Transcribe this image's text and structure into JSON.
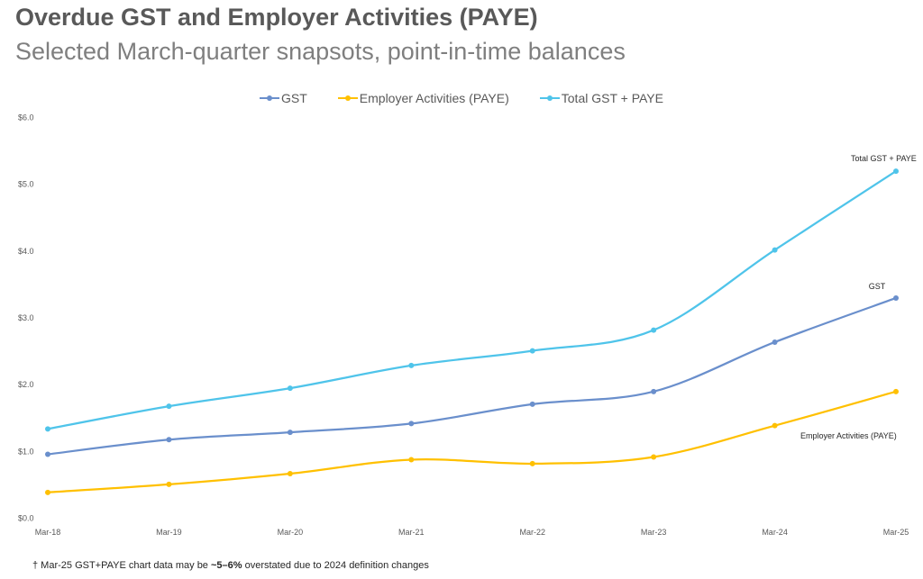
{
  "header": {
    "title": "Overdue GST and Employer Activities (PAYE)",
    "subtitle": "Selected March-quarter snapsots, point-in-time balances"
  },
  "footnote": {
    "prefix": "† Mar-25 GST+PAYE chart data  may be ",
    "emphasis": "~5–6%",
    "suffix": " overstated due to 2024 definition changes"
  },
  "chart_data": {
    "type": "line",
    "title": "Overdue GST and Employer Activities (PAYE)",
    "subtitle": "Selected March-quarter snapsots, point-in-time balances",
    "categories": [
      "Mar-18",
      "Mar-19",
      "Mar-20",
      "Mar-21",
      "Mar-22",
      "Mar-23",
      "Mar-24",
      "Mar-25"
    ],
    "y_ticks": [
      "$0.0",
      "$1.0",
      "$2.0",
      "$3.0",
      "$4.0",
      "$5.0",
      "$6.0"
    ],
    "ylim": [
      0,
      6
    ],
    "grid": false,
    "legend_position": "top",
    "series": [
      {
        "name": "GST",
        "color": "#6a8fcc",
        "values": [
          0.95,
          1.17,
          1.28,
          1.41,
          1.7,
          1.89,
          2.63,
          3.29
        ],
        "end_label": "GST"
      },
      {
        "name": "Employer Activities (PAYE)",
        "color": "#ffc000",
        "values": [
          0.38,
          0.5,
          0.66,
          0.87,
          0.81,
          0.91,
          1.38,
          1.89
        ],
        "end_label": "Employer Activities (PAYE)"
      },
      {
        "name": "Total GST + PAYE",
        "color": "#4fc4ea",
        "values": [
          1.33,
          1.67,
          1.94,
          2.28,
          2.5,
          2.81,
          4.01,
          5.19
        ],
        "end_label": "Total GST + PAYE"
      }
    ]
  }
}
